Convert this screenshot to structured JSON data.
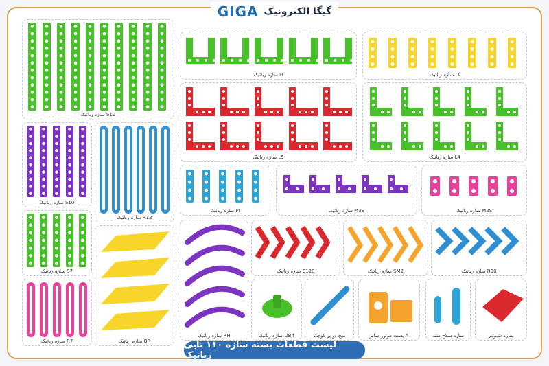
{
  "header": {
    "brand_logo": "GIGA",
    "brand_name": "گیگا الکترونیک"
  },
  "footer": {
    "title": "لیست قطعات بسته سازه ۱۱۰ تایی رباتیک"
  },
  "colors": {
    "border": "#d9a45a",
    "accent": "#2f6db5",
    "green": "#47c02a",
    "yellow": "#f7d52b",
    "red": "#d9282e",
    "purple": "#7d35c1",
    "blue": "#2f8fd0",
    "pink": "#ea3f9b",
    "orange": "#f4a32c",
    "cyan": "#2ea5d8"
  },
  "panels": {
    "s12": {
      "label": "سازه رباتیک S12"
    },
    "u": {
      "label": "سازه رباتیک U"
    },
    "i3": {
      "label": "سازه رباتیک I3"
    },
    "l5": {
      "label": "سازه رباتیک L5"
    },
    "l4": {
      "label": "سازه رباتیک L4"
    },
    "s10": {
      "label": "سازه رباتیک S10"
    },
    "r12": {
      "label": "سازه رباتیک R12"
    },
    "i4": {
      "label": "سازه رباتیک I4"
    },
    "m3s": {
      "label": "سازه رباتیک M3S"
    },
    "m2s": {
      "label": "سازه رباتیک M2S"
    },
    "s7": {
      "label": "سازه رباتیک S7"
    },
    "rh": {
      "label": "سازه رباتیک RH"
    },
    "s120": {
      "label": "سازه رباتیک S120"
    },
    "sm2": {
      "label": "سازه رباتیک SM2"
    },
    "r90": {
      "label": "سازه رباتیک R90"
    },
    "r7": {
      "label": "سازه رباتیک R7"
    },
    "br": {
      "label": "سازه رباتیک BR"
    },
    "db4": {
      "label": "سازه رباتیک DB4"
    },
    "coupler": {
      "label": "ملخ دو پر کوچک"
    },
    "motor_mount": {
      "label": "بست موتور سایز A"
    },
    "hex_key": {
      "label": "سازه سلاح متنه"
    },
    "shovel": {
      "label": "سازه شـوتـر"
    }
  }
}
